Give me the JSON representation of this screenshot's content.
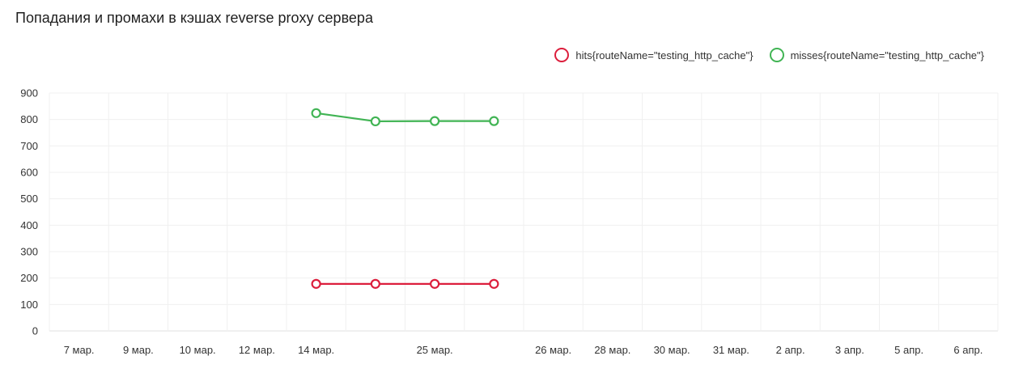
{
  "panel": {
    "title": "Попадания и промахи в кэшах reverse proxy сервера"
  },
  "chart_data": {
    "type": "line",
    "title": "Попадания и промахи в кэшах reverse proxy сервера",
    "xlabel": "",
    "ylabel": "",
    "categories": [
      "7 мар.",
      "9 мар.",
      "10 мар.",
      "12 мар.",
      "14 мар.",
      "",
      "25 мар.",
      "",
      "26 мар.",
      "28 мар.",
      "30 мар.",
      "31 мар.",
      "2 апр.",
      "3 апр.",
      "5 апр.",
      "6 апр."
    ],
    "x_tick_labels": [
      "7 мар.",
      "9 мар.",
      "10 мар.",
      "12 мар.",
      "14 мар.",
      "25 мар.",
      "26 мар.",
      "28 мар.",
      "30 мар.",
      "31 мар.",
      "2 апр.",
      "3 апр.",
      "5 апр.",
      "6 апр."
    ],
    "y_ticks": [
      0,
      100,
      200,
      300,
      400,
      500,
      600,
      700,
      800,
      900
    ],
    "ylim": [
      0,
      900
    ],
    "grid": true,
    "legend_position": "top-right",
    "series": [
      {
        "name": "hits{routeName=\"testing_http_cache\"}",
        "color": "#dc1e3c",
        "points": [
          {
            "x": 4,
            "y": 178
          },
          {
            "x": 5,
            "y": 178
          },
          {
            "x": 6,
            "y": 178
          },
          {
            "x": 7,
            "y": 178
          }
        ]
      },
      {
        "name": "misses{routeName=\"testing_http_cache\"}",
        "color": "#41b454",
        "points": [
          {
            "x": 4,
            "y": 824
          },
          {
            "x": 5,
            "y": 793
          },
          {
            "x": 6,
            "y": 794
          },
          {
            "x": 7,
            "y": 794
          }
        ]
      }
    ]
  }
}
